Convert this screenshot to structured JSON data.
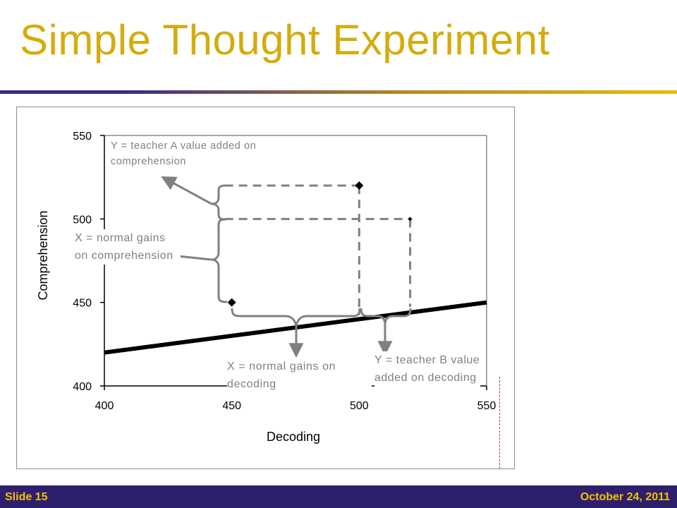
{
  "slide": {
    "title": "Simple Thought Experiment",
    "slide_label": "Slide 15",
    "date": "October 24, 2011"
  },
  "colors": {
    "title": "#d4ac0d",
    "footer_bg": "#2e1f6e",
    "footer_text": "#f2c200",
    "annotation": "#808080",
    "line": "#000000"
  },
  "chart_data": {
    "type": "scatter",
    "title": "",
    "xlabel": "Decoding",
    "ylabel": "Comprehension",
    "xlim": [
      400,
      550
    ],
    "ylim": [
      400,
      550
    ],
    "xticks": [
      "400",
      "450",
      "500",
      "550"
    ],
    "yticks": [
      "400",
      "450",
      "500",
      "550"
    ],
    "grid": false,
    "points": [
      {
        "x": 450,
        "y": 450
      },
      {
        "x": 500,
        "y": 520
      },
      {
        "x": 520,
        "y": 500
      }
    ],
    "line": {
      "x": [
        400,
        550
      ],
      "y": [
        420,
        450
      ]
    },
    "annotations": {
      "teacher_a": "Y = teacher A value added on comprehension",
      "normal_comp": "X = normal gains on comprehension",
      "normal_dec": "X = normal gains on decoding",
      "teacher_b": "Y = teacher B value added on decoding"
    }
  }
}
